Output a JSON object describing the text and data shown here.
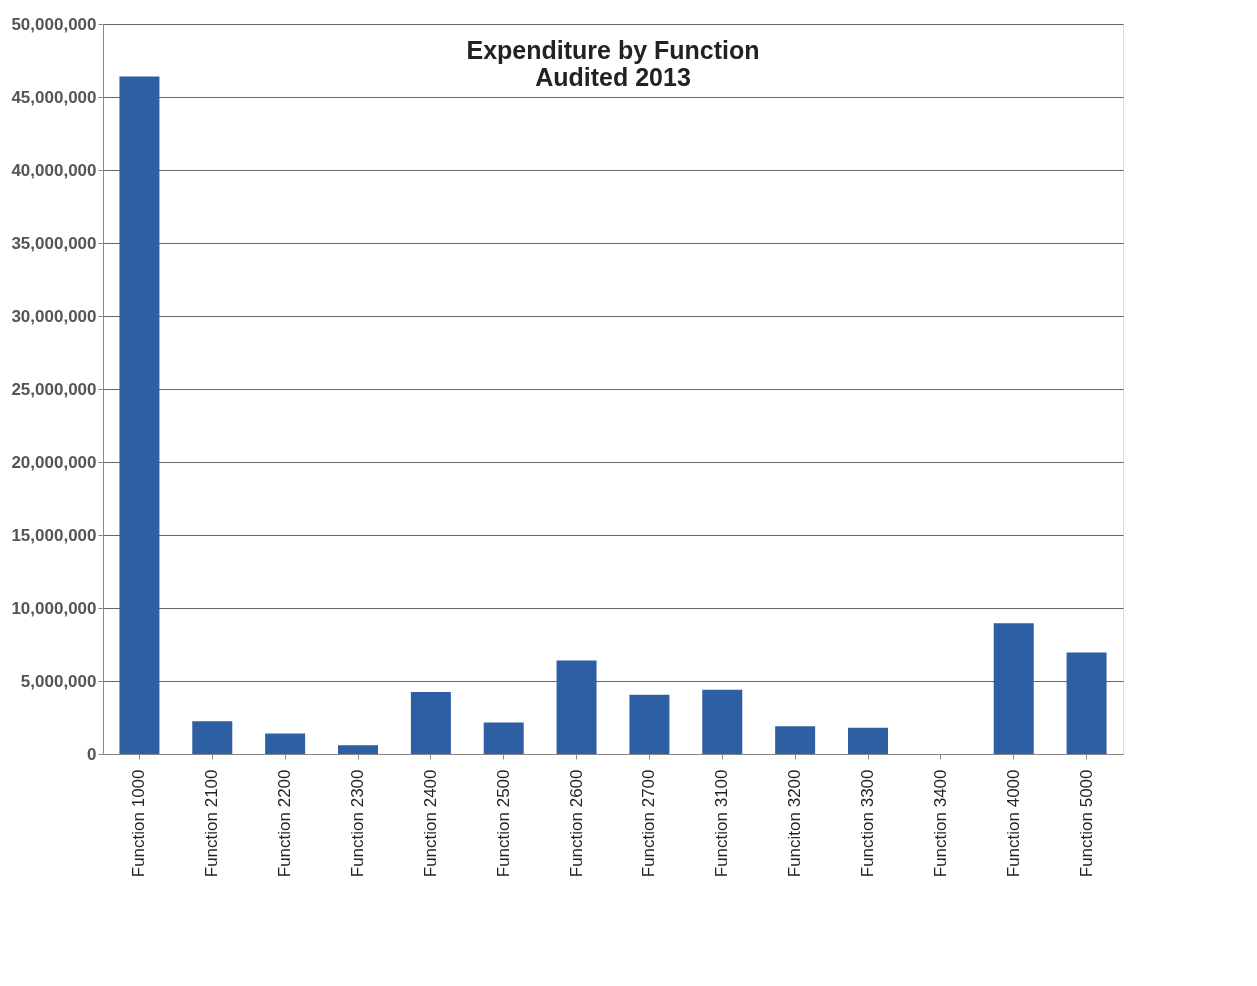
{
  "chart_data": {
    "type": "bar",
    "title": [
      "Expenditure by Function",
      "Audited 2013"
    ],
    "categories": [
      "Function 1000",
      "Function 2100",
      "Function 2200",
      "Function 2300",
      "Function 2400",
      "Function 2500",
      "Function 2600",
      "Function 2700",
      "Function 3100",
      "Funciton 3200",
      "Function 3300",
      "Function 3400",
      "Function 4000",
      "Function 5000"
    ],
    "values": [
      46400000,
      2250000,
      1400000,
      600000,
      4250000,
      2150000,
      6400000,
      4050000,
      4400000,
      1900000,
      1800000,
      0,
      8950000,
      6950000
    ],
    "color": "#2e5fa3",
    "ylim": [
      0,
      50000000
    ],
    "yticks": [
      0,
      {
        "value": 5000000,
        "label": "5,000,000"
      },
      {
        "value": 10000000,
        "label": "10,000,000"
      },
      {
        "value": 15000000,
        "label": "15,000,000"
      },
      {
        "value": 20000000,
        "label": "20,000,000"
      },
      {
        "value": 25000000,
        "label": "25,000,000"
      },
      {
        "value": 30000000,
        "label": "30,000,000"
      },
      {
        "value": 35000000,
        "label": "35,000,000"
      },
      {
        "value": 40000000,
        "label": "40,000,000"
      },
      {
        "value": 45000000,
        "label": "45,000,000"
      },
      {
        "value": 50000000,
        "label": "50,000,000"
      }
    ],
    "grid": "y"
  }
}
